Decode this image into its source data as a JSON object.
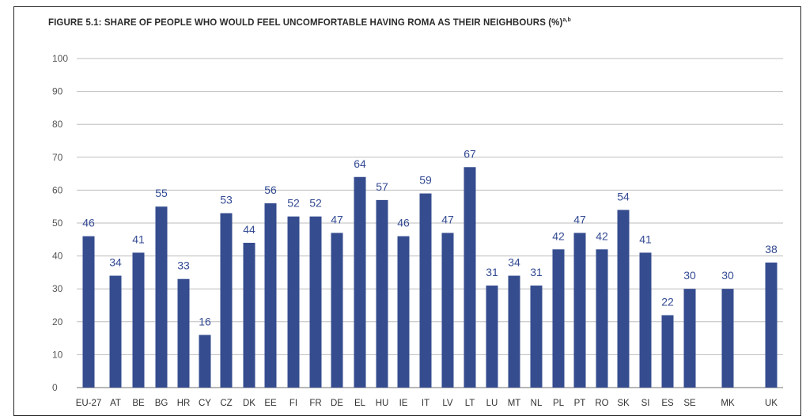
{
  "chart_data": {
    "type": "bar",
    "title": "FIGURE 5.1: SHARE OF PEOPLE WHO WOULD FEEL UNCOMFORTABLE HAVING ROMA AS THEIR NEIGHBOURS (%)",
    "title_marker": "a,b",
    "xlabel": "",
    "ylabel": "",
    "ylim": [
      0,
      100
    ],
    "yticks": [
      0,
      10,
      20,
      30,
      40,
      50,
      60,
      70,
      80,
      90,
      100
    ],
    "grid": true,
    "bar_color": "#354c8f",
    "grid_color": "#bdbdbd",
    "categories": [
      "EU-27",
      "AT",
      "BE",
      "BG",
      "HR",
      "CY",
      "CZ",
      "DK",
      "EE",
      "FI",
      "FR",
      "DE",
      "EL",
      "HU",
      "IE",
      "IT",
      "LV",
      "LT",
      "LU",
      "MT",
      "NL",
      "PL",
      "PT",
      "RO",
      "SK",
      "SI",
      "ES",
      "SE",
      "MK",
      "UK"
    ],
    "values": [
      46,
      34,
      41,
      55,
      33,
      16,
      53,
      44,
      56,
      52,
      52,
      47,
      64,
      57,
      46,
      59,
      47,
      67,
      31,
      34,
      31,
      42,
      47,
      42,
      54,
      41,
      22,
      30,
      30,
      38
    ]
  }
}
